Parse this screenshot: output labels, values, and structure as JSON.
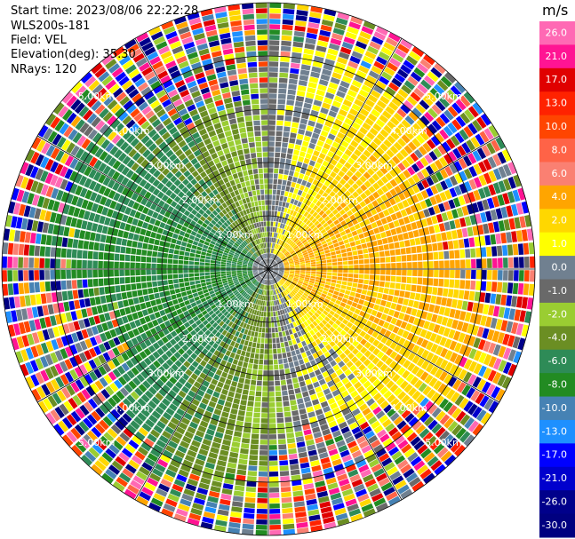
{
  "header": {
    "start_time": "Start time: 2023/08/06 22:22:28",
    "instrument": "WLS200s-181",
    "field": "Field: VEL",
    "elevation": "Elevation(deg): 35.30",
    "nrays": "NRays: 120"
  },
  "chart_data": {
    "type": "polar-ppi",
    "field": "VEL",
    "units": "m/s",
    "nrays": 120,
    "range_rings_km": [
      1.0,
      2.0,
      3.0,
      4.0,
      5.0
    ],
    "range_ring_labels": [
      "1.00km",
      "2.00km",
      "3.00km",
      "4.00km",
      "5.00km"
    ],
    "max_range_km": 5.0,
    "colorbar": {
      "title": "m/s",
      "ticks": [
        "26.0",
        "21.0",
        "17.0",
        "13.0",
        "10.0",
        "8.0",
        "6.0",
        "4.0",
        "2.0",
        "1.0",
        "0.0",
        "-1.0",
        "-2.0",
        "-4.0",
        "-6.0",
        "-8.0",
        "-10.0",
        "-13.0",
        "-17.0",
        "-21.0",
        "-26.0",
        "-30.0"
      ],
      "bins": [
        {
          "lo": 26,
          "hi": 30,
          "color": "#ff69b4"
        },
        {
          "lo": 21,
          "hi": 26,
          "color": "#ff1493"
        },
        {
          "lo": 17,
          "hi": 21,
          "color": "#e00000"
        },
        {
          "lo": 13,
          "hi": 17,
          "color": "#ff2200"
        },
        {
          "lo": 10,
          "hi": 13,
          "color": "#ff4500"
        },
        {
          "lo": 8,
          "hi": 10,
          "color": "#ff6347"
        },
        {
          "lo": 6,
          "hi": 8,
          "color": "#fa8072"
        },
        {
          "lo": 4,
          "hi": 6,
          "color": "#ffa500"
        },
        {
          "lo": 2,
          "hi": 4,
          "color": "#ffd700"
        },
        {
          "lo": 1,
          "hi": 2,
          "color": "#ffff00"
        },
        {
          "lo": 0,
          "hi": 1,
          "color": "#708090"
        },
        {
          "lo": -1,
          "hi": 0,
          "color": "#696969"
        },
        {
          "lo": -2,
          "hi": -1,
          "color": "#9acd32"
        },
        {
          "lo": -4,
          "hi": -2,
          "color": "#6b8e23"
        },
        {
          "lo": -6,
          "hi": -4,
          "color": "#2e8b57"
        },
        {
          "lo": -8,
          "hi": -6,
          "color": "#228b22"
        },
        {
          "lo": -10,
          "hi": -8,
          "color": "#4682b4"
        },
        {
          "lo": -13,
          "hi": -10,
          "color": "#1e90ff"
        },
        {
          "lo": -17,
          "hi": -13,
          "color": "#0000ff"
        },
        {
          "lo": -21,
          "hi": -17,
          "color": "#0000cd"
        },
        {
          "lo": -26,
          "hi": -21,
          "color": "#00008b"
        },
        {
          "lo": -30,
          "hi": -26,
          "color": "#000080"
        }
      ]
    },
    "velocity_pattern": {
      "east_sector": "positive (yellow/orange, 1 to 6 m/s)",
      "west_sector": "negative (green, -2 to -8 m/s)",
      "far_range": "noise (mixed colors beyond ~3.5 km)"
    }
  }
}
